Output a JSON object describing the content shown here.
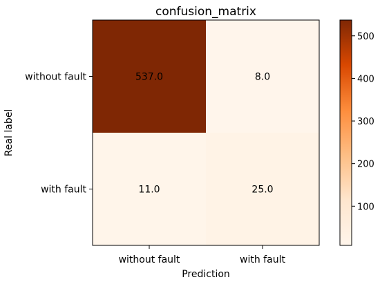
{
  "chart_data": {
    "type": "heatmap",
    "title": "confusion_matrix",
    "xlabel": "Prediction",
    "ylabel": "Real label",
    "x_categories": [
      "without fault",
      "with fault"
    ],
    "y_categories": [
      "without fault",
      "with fault"
    ],
    "values": [
      [
        537.0,
        8.0
      ],
      [
        11.0,
        25.0
      ]
    ],
    "cell_labels": [
      [
        "537.0",
        "8.0"
      ],
      [
        "11.0",
        "25.0"
      ]
    ],
    "colormap": "Oranges",
    "colorbar": {
      "min": 8.0,
      "max": 537.0,
      "ticks": [
        100,
        200,
        300,
        400,
        500
      ],
      "tick_labels": [
        "100",
        "200",
        "300",
        "400",
        "500"
      ]
    },
    "colors": {
      "low": "#fff5eb",
      "high": "#7f2704"
    }
  }
}
